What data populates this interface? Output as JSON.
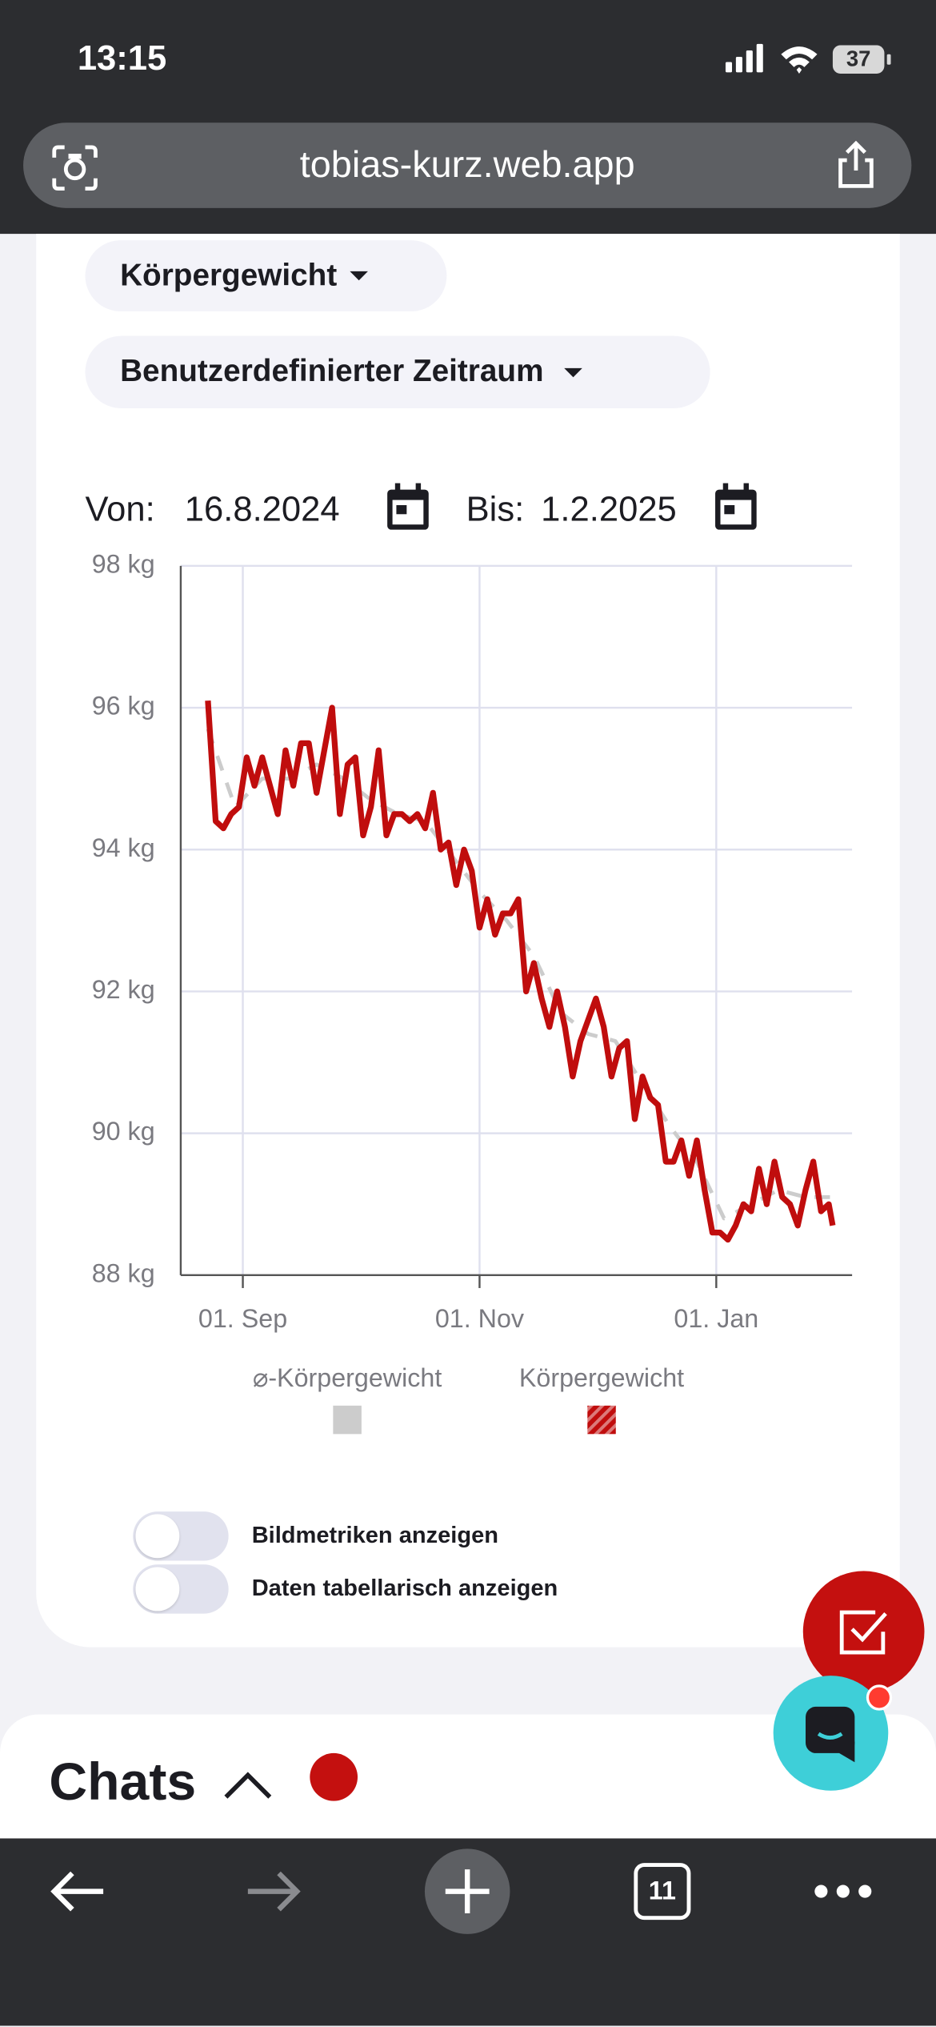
{
  "status_bar": {
    "time": "13:15",
    "battery": 37
  },
  "browser": {
    "url": "tobias-kurz.web.app",
    "tabs": 11
  },
  "filters": {
    "metric": "Körpergewicht",
    "range": "Benutzerdefinierter Zeitraum"
  },
  "date_range": {
    "from_label": "Von:",
    "from": "16.8.2024",
    "to_label": "Bis:",
    "to": "1.2.2025"
  },
  "chart_data": {
    "type": "line",
    "xlim": [
      "2024-08-16",
      "2025-02-05"
    ],
    "xticks": [
      {
        "value": "2024-09-01",
        "label": "01. Sep"
      },
      {
        "value": "2024-11-01",
        "label": "01. Nov"
      },
      {
        "value": "2025-01-01",
        "label": "01. Jan"
      }
    ],
    "ylim": [
      88,
      98
    ],
    "yticks": [
      {
        "value": 88,
        "label": "88 kg"
      },
      {
        "value": 90,
        "label": "90 kg"
      },
      {
        "value": 92,
        "label": "92 kg"
      },
      {
        "value": 94,
        "label": "94 kg"
      },
      {
        "value": 96,
        "label": "96 kg"
      },
      {
        "value": 98,
        "label": "98 kg"
      }
    ],
    "grid": true,
    "legend": "bottom",
    "series": [
      {
        "name": "⌀-Körpergewicht",
        "color": "#cccccc",
        "line_style": "dashed",
        "swatch": "solid",
        "x": [
          "2024-08-23",
          "2024-08-30",
          "2024-09-06",
          "2024-09-13",
          "2024-09-20",
          "2024-09-27",
          "2024-10-04",
          "2024-10-11",
          "2024-10-18",
          "2024-10-25",
          "2024-11-01",
          "2024-11-08",
          "2024-11-15",
          "2024-11-22",
          "2024-11-29",
          "2024-12-06",
          "2024-12-13",
          "2024-12-20",
          "2024-12-27",
          "2025-01-03",
          "2025-01-10",
          "2025-01-17",
          "2025-01-24",
          "2025-01-31"
        ],
        "values": [
          95.7,
          94.6,
          95.0,
          95.0,
          95.2,
          95.0,
          94.7,
          94.5,
          94.4,
          93.9,
          93.4,
          93.0,
          92.5,
          91.7,
          91.4,
          91.3,
          90.7,
          90.1,
          89.6,
          88.8,
          89.0,
          89.2,
          89.1,
          89.1
        ]
      },
      {
        "name": "Körpergewicht",
        "color": "#c00d0d",
        "line_style": "solid",
        "swatch": "hatched",
        "x": [
          "2024-08-23",
          "2024-08-25",
          "2024-08-27",
          "2024-08-29",
          "2024-08-31",
          "2024-09-02",
          "2024-09-04",
          "2024-09-06",
          "2024-09-08",
          "2024-09-10",
          "2024-09-12",
          "2024-09-14",
          "2024-09-16",
          "2024-09-18",
          "2024-09-20",
          "2024-09-22",
          "2024-09-24",
          "2024-09-26",
          "2024-09-28",
          "2024-09-30",
          "2024-10-02",
          "2024-10-04",
          "2024-10-06",
          "2024-10-08",
          "2024-10-10",
          "2024-10-12",
          "2024-10-14",
          "2024-10-16",
          "2024-10-18",
          "2024-10-20",
          "2024-10-22",
          "2024-10-24",
          "2024-10-26",
          "2024-10-28",
          "2024-10-30",
          "2024-11-01",
          "2024-11-03",
          "2024-11-05",
          "2024-11-07",
          "2024-11-09",
          "2024-11-11",
          "2024-11-13",
          "2024-11-15",
          "2024-11-17",
          "2024-11-19",
          "2024-11-21",
          "2024-11-23",
          "2024-11-25",
          "2024-11-27",
          "2024-11-29",
          "2024-12-01",
          "2024-12-03",
          "2024-12-05",
          "2024-12-07",
          "2024-12-09",
          "2024-12-11",
          "2024-12-13",
          "2024-12-15",
          "2024-12-17",
          "2024-12-19",
          "2024-12-21",
          "2024-12-23",
          "2024-12-25",
          "2024-12-27",
          "2024-12-29",
          "2024-12-31",
          "2025-01-02",
          "2025-01-04",
          "2025-01-06",
          "2025-01-08",
          "2025-01-10",
          "2025-01-12",
          "2025-01-14",
          "2025-01-16",
          "2025-01-18",
          "2025-01-20",
          "2025-01-22",
          "2025-01-24",
          "2025-01-26",
          "2025-01-28",
          "2025-01-30",
          "2025-01-31"
        ],
        "values": [
          96.1,
          94.4,
          94.3,
          94.5,
          94.6,
          95.3,
          94.9,
          95.3,
          94.9,
          94.5,
          95.4,
          94.9,
          95.5,
          95.5,
          94.8,
          95.4,
          96.0,
          94.5,
          95.2,
          95.3,
          94.2,
          94.6,
          95.4,
          94.2,
          94.5,
          94.5,
          94.4,
          94.5,
          94.3,
          94.8,
          94.0,
          94.1,
          93.5,
          94.0,
          93.7,
          92.9,
          93.3,
          92.8,
          93.1,
          93.1,
          93.3,
          92.0,
          92.4,
          91.9,
          91.5,
          92.0,
          91.5,
          90.8,
          91.3,
          91.6,
          91.9,
          91.5,
          90.8,
          91.2,
          91.3,
          90.2,
          90.8,
          90.5,
          90.4,
          89.6,
          89.6,
          89.9,
          89.4,
          89.9,
          89.2,
          88.6,
          88.6,
          88.5,
          88.7,
          89.0,
          88.9,
          89.5,
          89.0,
          89.6,
          89.1,
          89.0,
          88.7,
          89.2,
          89.6,
          88.9,
          89.0,
          88.7
        ]
      }
    ]
  },
  "toggles": [
    "Bildmetriken anzeigen",
    "Daten tabellarisch anzeigen"
  ],
  "chats": {
    "title": "Chats"
  }
}
